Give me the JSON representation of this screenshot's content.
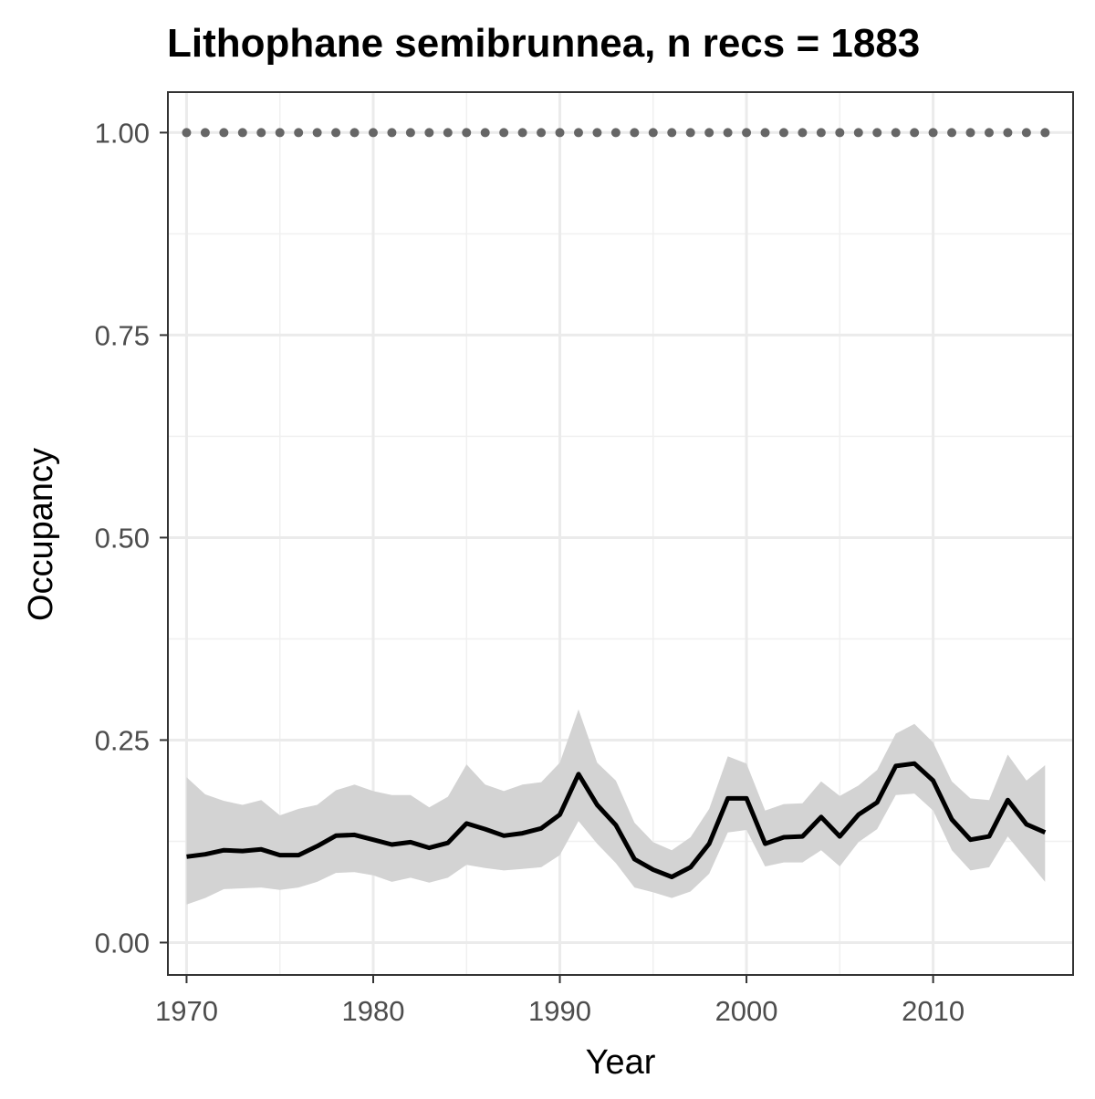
{
  "chart_data": {
    "type": "line",
    "title": "Lithophane semibrunnea, n recs = 1883",
    "xlabel": "Year",
    "ylabel": "Occupancy",
    "xlim": [
      1969,
      2017.5
    ],
    "ylim": [
      -0.04,
      1.05
    ],
    "x_ticks": [
      1970,
      1980,
      1990,
      2000,
      2010
    ],
    "x_tick_labels": [
      "1970",
      "1980",
      "1990",
      "2000",
      "2010"
    ],
    "y_ticks": [
      0,
      0.25,
      0.5,
      0.75,
      1.0
    ],
    "y_tick_labels": [
      "0.00",
      "0.25",
      "0.50",
      "0.75",
      "1.00"
    ],
    "grid": true,
    "x": [
      1970,
      1971,
      1972,
      1973,
      1974,
      1975,
      1976,
      1977,
      1978,
      1979,
      1980,
      1981,
      1982,
      1983,
      1984,
      1985,
      1986,
      1987,
      1988,
      1989,
      1990,
      1991,
      1992,
      1993,
      1994,
      1995,
      1996,
      1997,
      1998,
      1999,
      2000,
      2001,
      2002,
      2003,
      2004,
      2005,
      2006,
      2007,
      2008,
      2009,
      2010,
      2011,
      2012,
      2013,
      2014,
      2015,
      2016
    ],
    "series": [
      {
        "type": "line",
        "values": [
          0.106,
          0.109,
          0.114,
          0.113,
          0.115,
          0.108,
          0.108,
          0.119,
          0.132,
          0.133,
          0.127,
          0.121,
          0.124,
          0.117,
          0.123,
          0.147,
          0.14,
          0.132,
          0.135,
          0.141,
          0.158,
          0.208,
          0.17,
          0.145,
          0.103,
          0.09,
          0.081,
          0.093,
          0.122,
          0.178,
          0.178,
          0.122,
          0.13,
          0.131,
          0.155,
          0.131,
          0.158,
          0.173,
          0.218,
          0.221,
          0.2,
          0.152,
          0.127,
          0.131,
          0.176,
          0.146,
          0.136
        ],
        "color": "#000000"
      },
      {
        "type": "ribbon",
        "lower": [
          0.047,
          0.055,
          0.066,
          0.067,
          0.068,
          0.065,
          0.068,
          0.075,
          0.086,
          0.087,
          0.083,
          0.075,
          0.08,
          0.074,
          0.08,
          0.096,
          0.092,
          0.089,
          0.091,
          0.093,
          0.108,
          0.15,
          0.122,
          0.098,
          0.068,
          0.062,
          0.055,
          0.063,
          0.085,
          0.136,
          0.139,
          0.094,
          0.099,
          0.099,
          0.114,
          0.094,
          0.124,
          0.14,
          0.182,
          0.184,
          0.163,
          0.114,
          0.089,
          0.093,
          0.131,
          0.103,
          0.075
        ],
        "upper": [
          0.204,
          0.183,
          0.175,
          0.17,
          0.176,
          0.157,
          0.165,
          0.17,
          0.188,
          0.195,
          0.187,
          0.182,
          0.182,
          0.167,
          0.18,
          0.22,
          0.195,
          0.187,
          0.195,
          0.198,
          0.222,
          0.288,
          0.222,
          0.2,
          0.148,
          0.124,
          0.114,
          0.13,
          0.165,
          0.23,
          0.221,
          0.163,
          0.171,
          0.172,
          0.199,
          0.181,
          0.194,
          0.213,
          0.258,
          0.27,
          0.247,
          0.199,
          0.178,
          0.176,
          0.232,
          0.2,
          0.219
        ],
        "color": "#d3d3d3"
      },
      {
        "type": "points",
        "values": [
          1,
          1,
          1,
          1,
          1,
          1,
          1,
          1,
          1,
          1,
          1,
          1,
          1,
          1,
          1,
          1,
          1,
          1,
          1,
          1,
          1,
          1,
          1,
          1,
          1,
          1,
          1,
          1,
          1,
          1,
          1,
          1,
          1,
          1,
          1,
          1,
          1,
          1,
          1,
          1,
          1,
          1,
          1,
          1,
          1,
          1,
          1
        ],
        "color": "#666666"
      }
    ]
  }
}
